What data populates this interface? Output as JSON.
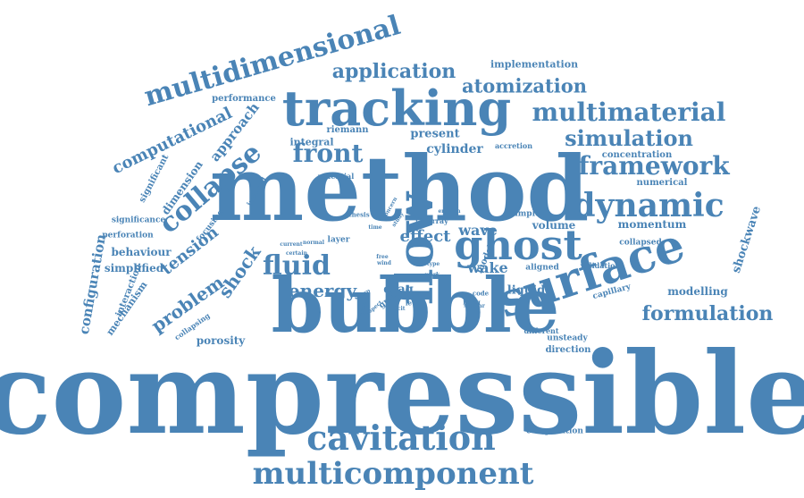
{
  "word_color": "#4a84b6",
  "background_color": "#ffffff",
  "words": [
    {
      "text": "compressible"
    },
    {
      "text": "bubble"
    },
    {
      "text": "method"
    },
    {
      "text": "flow"
    },
    {
      "text": "surface"
    },
    {
      "text": "tracking"
    },
    {
      "text": "ghost"
    },
    {
      "text": "multicomponent"
    },
    {
      "text": "cavitation"
    },
    {
      "text": "dynamic"
    },
    {
      "text": "multidimensional"
    },
    {
      "text": "framework"
    },
    {
      "text": "multimaterial"
    },
    {
      "text": "application"
    },
    {
      "text": "fluid"
    },
    {
      "text": "collapse"
    },
    {
      "text": "front"
    },
    {
      "text": "simulation"
    },
    {
      "text": "formulation"
    },
    {
      "text": "atomization"
    },
    {
      "text": "computational"
    },
    {
      "text": "energy"
    },
    {
      "text": "problem"
    },
    {
      "text": "shock"
    },
    {
      "text": "tension"
    },
    {
      "text": "configuration"
    },
    {
      "text": "shockwave"
    },
    {
      "text": "approach"
    },
    {
      "text": "effect"
    },
    {
      "text": "wake"
    },
    {
      "text": "wave"
    },
    {
      "text": "modelling"
    },
    {
      "text": "porosity"
    },
    {
      "text": "drag"
    },
    {
      "text": "cylinder"
    },
    {
      "text": "present"
    },
    {
      "text": "liquid"
    },
    {
      "text": "model"
    },
    {
      "text": "dimension"
    },
    {
      "text": "behaviour"
    },
    {
      "text": "momentum"
    },
    {
      "text": "volume"
    },
    {
      "text": "simplified"
    },
    {
      "text": "integral"
    },
    {
      "text": "riemann"
    },
    {
      "text": "implementation"
    },
    {
      "text": "concentration"
    },
    {
      "text": "numerical"
    },
    {
      "text": "significant"
    },
    {
      "text": "mechanism"
    },
    {
      "text": "interaction"
    },
    {
      "text": "collapsed"
    },
    {
      "text": "focusing"
    },
    {
      "text": "significance"
    },
    {
      "text": "perforation"
    },
    {
      "text": "computation"
    },
    {
      "text": "performance"
    },
    {
      "text": "direction"
    },
    {
      "text": "unsteady"
    },
    {
      "text": "capillary"
    },
    {
      "text": "aligned"
    },
    {
      "text": "array"
    },
    {
      "text": "case"
    },
    {
      "text": "simple"
    },
    {
      "text": "layer"
    },
    {
      "text": "novel"
    },
    {
      "text": "grid"
    },
    {
      "text": "induced"
    },
    {
      "text": "collapsing"
    },
    {
      "text": "accretion"
    },
    {
      "text": "different"
    },
    {
      "text": "validation"
    },
    {
      "text": "potential"
    },
    {
      "text": "thesis"
    },
    {
      "text": "current"
    },
    {
      "text": "certain"
    },
    {
      "text": "normal"
    },
    {
      "text": "code"
    },
    {
      "text": "similar"
    },
    {
      "text": "erosion"
    },
    {
      "text": "study"
    },
    {
      "text": "time"
    },
    {
      "text": "concern"
    },
    {
      "text": "free"
    },
    {
      "text": "wind"
    },
    {
      "text": "type"
    },
    {
      "text": "work"
    },
    {
      "text": "icing"
    },
    {
      "text": "turbine"
    },
    {
      "text": "deficit"
    },
    {
      "text": "level"
    },
    {
      "text": "sharp"
    },
    {
      "text": "respect"
    },
    {
      "text": "phase"
    }
  ]
}
